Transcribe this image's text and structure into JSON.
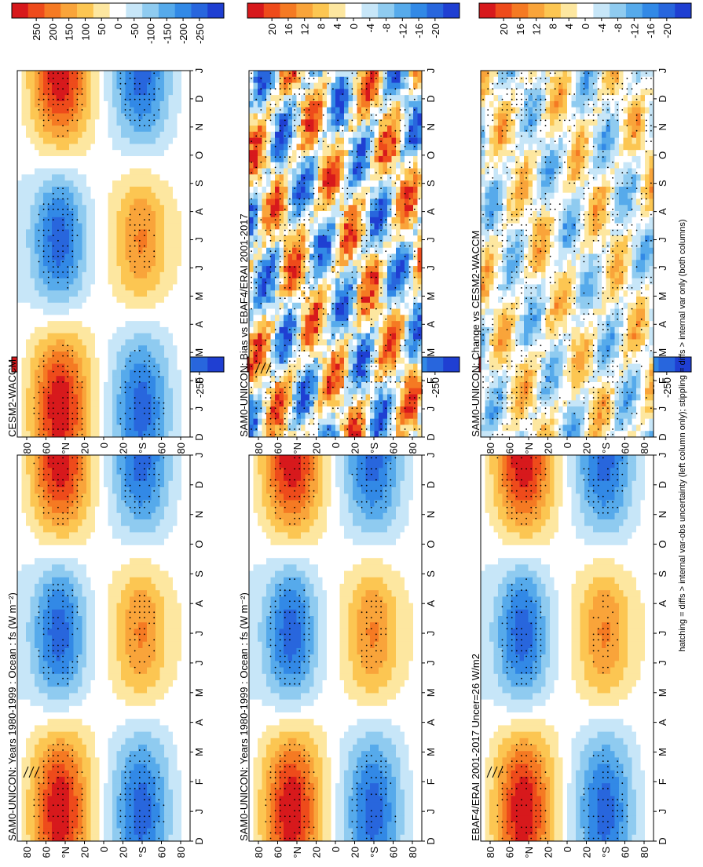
{
  "figure": {
    "footer_note": "hatching = diffs > internal var-obs uncertainty (left column only); stippling = diffs > internal var only (both columns)"
  },
  "chart_data": [
    {
      "type": "heatmap",
      "id": "p1",
      "title": "SAM0-UNICON: Years 1980-1999 : Ocean : fs (W m⁻²)",
      "x_ticks": [
        "D",
        "J",
        "F",
        "M",
        "A",
        "M",
        "J",
        "J",
        "A",
        "S",
        "O",
        "N",
        "D",
        "J"
      ],
      "y_ticks": [
        "80",
        "60",
        "°N",
        "20",
        "0",
        "20",
        "°S",
        "60",
        "80"
      ],
      "ylim": [
        -90,
        90
      ],
      "colorbar": {
        "ticks": [
          "250",
          "200",
          "150",
          "100",
          "50",
          "0",
          "-50",
          "-100",
          "-150",
          "-200",
          "-250"
        ],
        "range": [
          -260,
          260
        ]
      },
      "field": {
        "amplitude": 230,
        "offset": 0,
        "noise": 0
      },
      "stippling": true,
      "hatching": true
    },
    {
      "type": "heatmap",
      "id": "p2",
      "title": "SAM0-UNICON: Years 1980-1999 : Ocean : fs (W m⁻²)",
      "x_ticks": [
        "D",
        "J",
        "F",
        "M",
        "A",
        "M",
        "J",
        "J",
        "A",
        "S",
        "O",
        "N",
        "D",
        "J"
      ],
      "y_ticks": [
        "80",
        "60",
        "°N",
        "20",
        "0",
        "20",
        "°S",
        "60",
        "80"
      ],
      "ylim": [
        -90,
        90
      ],
      "colorbar": {
        "ticks": [
          "250",
          "200",
          "150",
          "100",
          "50",
          "0",
          "-50",
          "-100",
          "-150",
          "-200",
          "-250"
        ],
        "range": [
          -260,
          260
        ]
      },
      "field": {
        "amplitude": 230,
        "offset": 0,
        "noise": 0
      },
      "stippling": true,
      "hatching": false
    },
    {
      "type": "heatmap",
      "id": "p3",
      "title": "EBAF4/ERAI 2001-2017 Uncer=26 W/m2",
      "x_ticks": [
        "D",
        "J",
        "F",
        "M",
        "A",
        "M",
        "J",
        "J",
        "A",
        "S",
        "O",
        "N",
        "D",
        "J"
      ],
      "y_ticks": [
        "80",
        "60",
        "°N",
        "20",
        "0",
        "20",
        "°S",
        "60",
        "80"
      ],
      "ylim": [
        -90,
        90
      ],
      "colorbar": {
        "ticks": [
          "250",
          "200",
          "150",
          "100",
          "50",
          "0",
          "-50",
          "-100",
          "-150",
          "-200",
          "-250"
        ],
        "range": [
          -260,
          260
        ]
      },
      "field": {
        "amplitude": 230,
        "offset": 0,
        "noise": 0
      },
      "stippling": true,
      "hatching": true
    },
    {
      "type": "heatmap",
      "id": "p4",
      "title": "CESM2-WACCM",
      "x_ticks": [
        "D",
        "J",
        "F",
        "M",
        "A",
        "M",
        "J",
        "J",
        "A",
        "S",
        "O",
        "N",
        "D",
        "J"
      ],
      "y_ticks": [
        "80",
        "60",
        "°N",
        "20",
        "0",
        "20",
        "°S",
        "60",
        "80"
      ],
      "ylim": [
        -90,
        90
      ],
      "colorbar": {
        "ticks": [
          "250",
          "200",
          "150",
          "100",
          "50",
          "0",
          "-50",
          "-100",
          "-150",
          "-200",
          "-250"
        ],
        "range": [
          -260,
          260
        ]
      },
      "field": {
        "amplitude": 230,
        "offset": 0,
        "noise": 0
      },
      "stippling": true,
      "hatching": false
    },
    {
      "type": "heatmap",
      "id": "p5",
      "title": "SAM0-UNICON: Bias vs EBAF4/ERAI 2001-2017",
      "x_ticks": [
        "D",
        "J",
        "F",
        "M",
        "A",
        "M",
        "J",
        "J",
        "A",
        "S",
        "O",
        "N",
        "D",
        "J"
      ],
      "y_ticks": [
        "80",
        "60",
        "°N",
        "20",
        "0",
        "20",
        "°S",
        "60",
        "80"
      ],
      "ylim": [
        -90,
        90
      ],
      "colorbar": {
        "ticks": [
          "20",
          "16",
          "12",
          "8",
          "4",
          "0",
          "-4",
          "-8",
          "-12",
          "-16",
          "-20"
        ],
        "range": [
          -22,
          22
        ]
      },
      "field": {
        "amplitude": 0,
        "offset": 0,
        "noise": 18
      },
      "stippling": true,
      "hatching": true
    },
    {
      "type": "heatmap",
      "id": "p6",
      "title": "SAM0-UNICON: Change vs CESM2-WACCM",
      "x_ticks": [
        "D",
        "J",
        "F",
        "M",
        "A",
        "M",
        "J",
        "J",
        "A",
        "S",
        "O",
        "N",
        "D",
        "J"
      ],
      "y_ticks": [
        "80",
        "60",
        "°N",
        "20",
        "0",
        "20",
        "°S",
        "60",
        "80"
      ],
      "ylim": [
        -90,
        90
      ],
      "colorbar": {
        "ticks": [
          "20",
          "16",
          "12",
          "8",
          "4",
          "0",
          "-4",
          "-8",
          "-12",
          "-16",
          "-20"
        ],
        "range": [
          -22,
          22
        ]
      },
      "field": {
        "amplitude": 0,
        "offset": 0,
        "noise": 10
      },
      "stippling": true,
      "hatching": false
    }
  ]
}
